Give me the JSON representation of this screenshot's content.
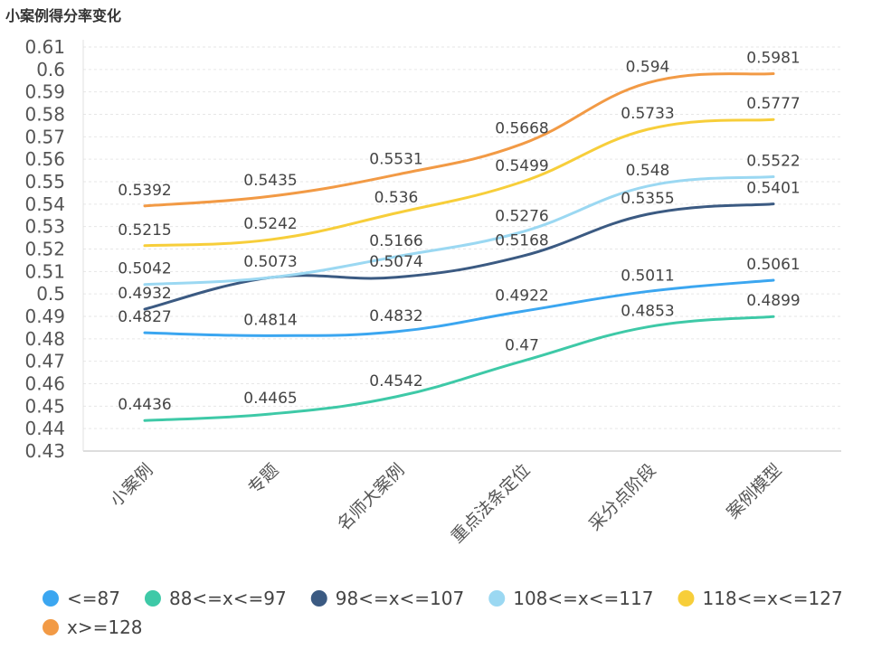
{
  "chart_data": {
    "type": "line",
    "title": "小案例得分率变化",
    "xlabel": "",
    "ylabel": "",
    "categories": [
      "小案例",
      "专题",
      "名师大案例",
      "重点法条定位",
      "采分点阶段",
      "案例模型"
    ],
    "yticks": [
      "0.61",
      "0.6",
      "0.59",
      "0.58",
      "0.57",
      "0.56",
      "0.55",
      "0.54",
      "0.53",
      "0.52",
      "0.51",
      "0.5",
      "0.49",
      "0.48",
      "0.47",
      "0.46",
      "0.45",
      "0.44",
      "0.43"
    ],
    "ylim": [
      0.43,
      0.61
    ],
    "grid": true,
    "legend_position": "bottom",
    "series": [
      {
        "name": "<=87",
        "color": "#3ba6f0",
        "values": [
          0.4827,
          0.4814,
          0.4832,
          0.4922,
          0.5011,
          0.5061
        ],
        "labels": [
          "0.4827",
          "0.4814",
          "0.4832",
          "0.4922",
          "0.5011",
          "0.5061"
        ]
      },
      {
        "name": "88<=x<=97",
        "color": "#3ec9a7",
        "values": [
          0.4436,
          0.4465,
          0.4542,
          0.47,
          0.4853,
          0.4899
        ],
        "labels": [
          "0.4436",
          "0.4465",
          "0.4542",
          "0.47",
          "0.4853",
          "0.4899"
        ]
      },
      {
        "name": "98<=x<=107",
        "color": "#3b5a82",
        "values": [
          0.4932,
          0.5073,
          0.5074,
          0.5168,
          0.5355,
          0.5401
        ],
        "labels": [
          "0.4932",
          "0.5073",
          "0.5074",
          "0.5168",
          "0.5355",
          "0.5401"
        ]
      },
      {
        "name": "108<=x<=117",
        "color": "#9bd8f2",
        "values": [
          0.5042,
          0.5073,
          0.5166,
          0.5276,
          0.548,
          0.5522
        ],
        "labels": [
          "0.5042",
          "",
          "0.5166",
          "0.5276",
          "0.548",
          "0.5522"
        ]
      },
      {
        "name": "118<=x<=127",
        "color": "#f7ce3a",
        "values": [
          0.5215,
          0.5242,
          0.536,
          0.5499,
          0.5733,
          0.5777
        ],
        "labels": [
          "0.5215",
          "0.5242",
          "0.536",
          "0.5499",
          "0.5733",
          "0.5777"
        ]
      },
      {
        "name": "x>=128",
        "color": "#f29a45",
        "values": [
          0.5392,
          0.5435,
          0.5531,
          0.5668,
          0.594,
          0.5981
        ],
        "labels": [
          "0.5392",
          "0.5435",
          "0.5531",
          "0.5668",
          "0.594",
          "0.5981"
        ]
      }
    ]
  }
}
